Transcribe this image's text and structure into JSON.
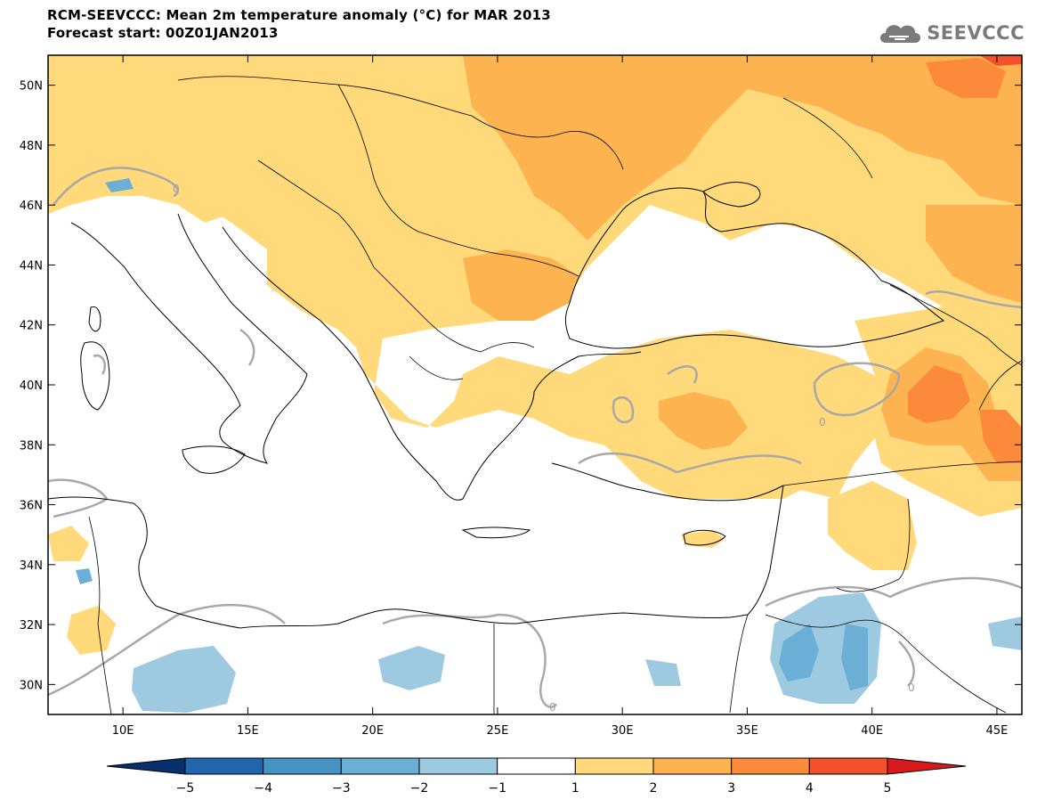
{
  "header": {
    "title_line1": "RCM-SEEVCCC: Mean 2m temperature anomaly (°C) for MAR 2013",
    "title_line2": "Forecast start: 00Z01JAN2013"
  },
  "logo": {
    "text": "SEEVCCC",
    "icon": "cloud-icon",
    "color": "#7a7a7a"
  },
  "map": {
    "longitude_range": [
      7,
      46
    ],
    "latitude_range": [
      29,
      51
    ],
    "longitude_ticks": [
      {
        "value": 10,
        "label": "10E"
      },
      {
        "value": 15,
        "label": "15E"
      },
      {
        "value": 20,
        "label": "20E"
      },
      {
        "value": 25,
        "label": "25E"
      },
      {
        "value": 30,
        "label": "30E"
      },
      {
        "value": 35,
        "label": "35E"
      },
      {
        "value": 40,
        "label": "40E"
      },
      {
        "value": 45,
        "label": "45E"
      }
    ],
    "latitude_ticks": [
      {
        "value": 30,
        "label": "30N"
      },
      {
        "value": 32,
        "label": "32N"
      },
      {
        "value": 34,
        "label": "34N"
      },
      {
        "value": 36,
        "label": "36N"
      },
      {
        "value": 38,
        "label": "38N"
      },
      {
        "value": 40,
        "label": "40N"
      },
      {
        "value": 42,
        "label": "42N"
      },
      {
        "value": 44,
        "label": "44N"
      },
      {
        "value": 46,
        "label": "46N"
      },
      {
        "value": 48,
        "label": "48N"
      },
      {
        "value": 50,
        "label": "50N"
      }
    ],
    "contour_label": "0"
  },
  "colorbar": {
    "labels": [
      "−5",
      "−4",
      "−3",
      "−2",
      "−1",
      "1",
      "2",
      "3",
      "4",
      "5"
    ],
    "colors": [
      "#08306b",
      "#2166ac",
      "#4393c3",
      "#6baed6",
      "#9ecae1",
      "#ffffff",
      "#ffd97a",
      "#fdb34f",
      "#fb8a3a",
      "#f4502a",
      "#d7191c"
    ]
  }
}
